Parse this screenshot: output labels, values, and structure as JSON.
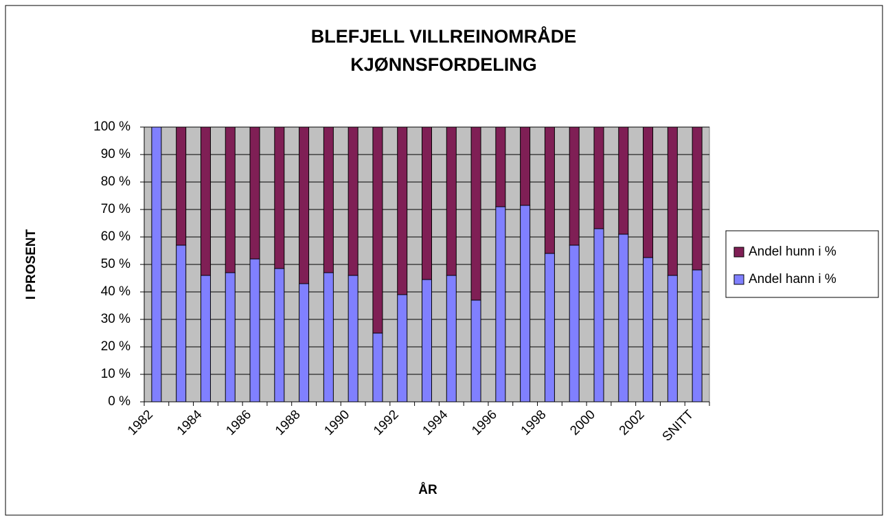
{
  "chart_data": {
    "type": "stacked_bar",
    "title": [
      "BLEFJELL VILLREINOMRÅDE",
      "KJØNNSFORDELING"
    ],
    "xlabel": "ÅR",
    "ylabel": "I PROSENT",
    "categories": [
      "1982",
      null,
      "1984",
      null,
      "1986",
      null,
      "1988",
      null,
      "1990",
      null,
      "1992",
      null,
      "1994",
      null,
      "1996",
      null,
      "1998",
      null,
      "2000",
      null,
      "2002",
      null,
      "SNITT"
    ],
    "series": [
      {
        "name": "Andel hann i %",
        "color": "#8080ff",
        "values": [
          100,
          57,
          46,
          47,
          52,
          48.5,
          43,
          47,
          46,
          25,
          39,
          44.5,
          46,
          37,
          71,
          71.5,
          54,
          57,
          63,
          61,
          52.5,
          46,
          48
        ]
      },
      {
        "name": "Andel hunn i %",
        "color": "#7f1f55",
        "values": [
          0,
          43,
          54,
          53,
          48,
          51.5,
          57,
          53,
          54,
          75,
          61,
          55.5,
          54,
          63,
          29,
          28.5,
          46,
          43,
          37,
          39,
          47.5,
          54,
          52
        ]
      }
    ],
    "ylim": [
      0,
      100
    ],
    "yticks": [
      {
        "value": 0,
        "label": "0 %"
      },
      {
        "value": 10,
        "label": "10 %"
      },
      {
        "value": 20,
        "label": "20 %"
      },
      {
        "value": 30,
        "label": "30 %"
      },
      {
        "value": 40,
        "label": "40 %"
      },
      {
        "value": 50,
        "label": "50 %"
      },
      {
        "value": 60,
        "label": "60 %"
      },
      {
        "value": 70,
        "label": "70 %"
      },
      {
        "value": 80,
        "label": "80 %"
      },
      {
        "value": 90,
        "label": "90 %"
      },
      {
        "value": 100,
        "label": "100 %"
      }
    ],
    "grid": true,
    "legend": "right"
  }
}
